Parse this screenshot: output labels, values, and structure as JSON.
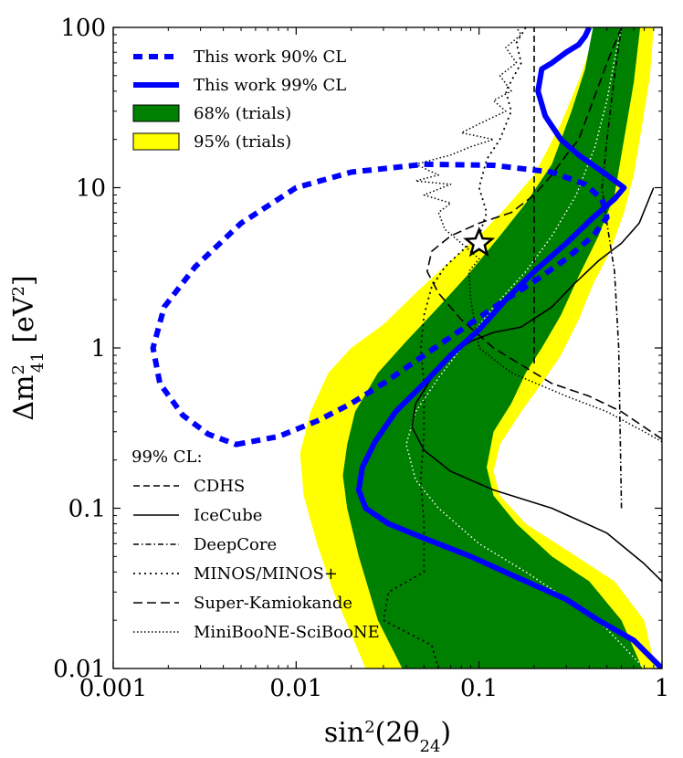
{
  "chart_data": {
    "type": "line",
    "xscale": "log",
    "yscale": "log",
    "xlim": [
      0.001,
      1
    ],
    "ylim": [
      0.01,
      100
    ],
    "xlabel": "sin²(2θ₂₄)",
    "xlabel_parts": {
      "base": "sin",
      "sup": "2",
      "mid": "(2θ",
      "sub": "24",
      "end": ")"
    },
    "ylabel": "Δm²₄₁ [eV²]",
    "ylabel_parts": {
      "base": "Δm",
      "sup": "2",
      "sub": "41",
      "mid": " [eV",
      "sup2": "2",
      "end": "]"
    },
    "xticks": [
      {
        "value": 0.001,
        "label": "0.001"
      },
      {
        "value": 0.01,
        "label": "0.01"
      },
      {
        "value": 0.1,
        "label": "0.1"
      },
      {
        "value": 1,
        "label": "1"
      }
    ],
    "yticks": [
      {
        "value": 0.01,
        "label": "0.01"
      },
      {
        "value": 0.1,
        "label": "0.1"
      },
      {
        "value": 1,
        "label": "1"
      },
      {
        "value": 10,
        "label": "10"
      },
      {
        "value": 100,
        "label": "100"
      }
    ],
    "best_fit": {
      "x": 0.1,
      "y": 4.5,
      "marker": "star"
    },
    "legend": [
      {
        "label": "This work 90% CL",
        "style": "thick-dashed",
        "color": "#0000ff"
      },
      {
        "label": "This work 99% CL",
        "style": "thick-solid",
        "color": "#0000ff"
      },
      {
        "label": "68% (trials)",
        "style": "patch",
        "color": "#008000"
      },
      {
        "label": "95% (trials)",
        "style": "patch",
        "color": "#ffff00"
      }
    ],
    "other_experiments_title": "99% CL:",
    "other_experiments": [
      {
        "label": "CDHS",
        "dash": "dashed"
      },
      {
        "label": "IceCube",
        "dash": "solid"
      },
      {
        "label": "DeepCore",
        "dash": "dashdot"
      },
      {
        "label": "MINOS/MINOS+",
        "dash": "dotted"
      },
      {
        "label": "Super-Kamiokande",
        "dash": "longdash"
      },
      {
        "label": "MiniBooNE-SciBooNE",
        "dash": "finedotted"
      }
    ],
    "series": [
      {
        "name": "95% (trials)",
        "kind": "band",
        "fill": "#ffff00",
        "left": [
          [
            0.024,
            0.01
          ],
          [
            0.016,
            0.03
          ],
          [
            0.013,
            0.06
          ],
          [
            0.011,
            0.12
          ],
          [
            0.0105,
            0.22
          ],
          [
            0.012,
            0.4
          ],
          [
            0.015,
            0.7
          ],
          [
            0.02,
            1.0
          ],
          [
            0.03,
            1.4
          ],
          [
            0.045,
            2.2
          ],
          [
            0.07,
            3.5
          ],
          [
            0.1,
            5
          ],
          [
            0.14,
            7.5
          ],
          [
            0.2,
            12
          ],
          [
            0.28,
            25
          ],
          [
            0.36,
            50
          ],
          [
            0.44,
            100
          ]
        ],
        "right": [
          [
            0.92,
            0.01
          ],
          [
            0.8,
            0.02
          ],
          [
            0.55,
            0.035
          ],
          [
            0.3,
            0.055
          ],
          [
            0.18,
            0.08
          ],
          [
            0.13,
            0.12
          ],
          [
            0.12,
            0.17
          ],
          [
            0.13,
            0.25
          ],
          [
            0.17,
            0.4
          ],
          [
            0.22,
            0.6
          ],
          [
            0.28,
            0.9
          ],
          [
            0.35,
            1.5
          ],
          [
            0.42,
            2.5
          ],
          [
            0.52,
            4
          ],
          [
            0.62,
            7
          ],
          [
            0.7,
            12
          ],
          [
            0.78,
            25
          ],
          [
            0.86,
            50
          ],
          [
            0.9,
            100
          ]
        ]
      },
      {
        "name": "68% (trials)",
        "kind": "band",
        "fill": "#008000",
        "left": [
          [
            0.038,
            0.01
          ],
          [
            0.028,
            0.02
          ],
          [
            0.022,
            0.05
          ],
          [
            0.019,
            0.1
          ],
          [
            0.018,
            0.16
          ],
          [
            0.019,
            0.25
          ],
          [
            0.021,
            0.4
          ],
          [
            0.028,
            0.7
          ],
          [
            0.04,
            1.1
          ],
          [
            0.06,
            1.8
          ],
          [
            0.09,
            3
          ],
          [
            0.13,
            5
          ],
          [
            0.18,
            8
          ],
          [
            0.25,
            14
          ],
          [
            0.32,
            30
          ],
          [
            0.38,
            55
          ],
          [
            0.42,
            100
          ]
        ],
        "right": [
          [
            0.78,
            0.01
          ],
          [
            0.6,
            0.02
          ],
          [
            0.4,
            0.035
          ],
          [
            0.25,
            0.05
          ],
          [
            0.16,
            0.08
          ],
          [
            0.12,
            0.12
          ],
          [
            0.11,
            0.18
          ],
          [
            0.12,
            0.3
          ],
          [
            0.15,
            0.45
          ],
          [
            0.18,
            0.7
          ],
          [
            0.22,
            1.0
          ],
          [
            0.28,
            1.6
          ],
          [
            0.35,
            2.8
          ],
          [
            0.45,
            5
          ],
          [
            0.55,
            9
          ],
          [
            0.62,
            20
          ],
          [
            0.7,
            45
          ],
          [
            0.76,
            100
          ]
        ]
      },
      {
        "name": "Median (trials)",
        "kind": "line",
        "stroke": "#ffffff",
        "dash": "dotted",
        "points": [
          [
            0.8,
            0.01
          ],
          [
            0.45,
            0.02
          ],
          [
            0.18,
            0.04
          ],
          [
            0.1,
            0.06
          ],
          [
            0.06,
            0.1
          ],
          [
            0.045,
            0.15
          ],
          [
            0.04,
            0.25
          ],
          [
            0.045,
            0.4
          ],
          [
            0.06,
            0.65
          ],
          [
            0.08,
            1.0
          ],
          [
            0.12,
            1.8
          ],
          [
            0.18,
            3
          ],
          [
            0.25,
            5
          ],
          [
            0.34,
            9
          ],
          [
            0.43,
            18
          ],
          [
            0.5,
            35
          ],
          [
            0.56,
            70
          ],
          [
            0.6,
            100
          ]
        ]
      },
      {
        "name": "This work 90% CL",
        "kind": "line",
        "stroke": "#0000ff",
        "dash": "thick-dashed",
        "closed": true,
        "points": [
          [
            0.0047,
            0.25
          ],
          [
            0.008,
            0.28
          ],
          [
            0.013,
            0.35
          ],
          [
            0.02,
            0.45
          ],
          [
            0.03,
            0.6
          ],
          [
            0.05,
            0.9
          ],
          [
            0.08,
            1.3
          ],
          [
            0.13,
            1.9
          ],
          [
            0.2,
            2.6
          ],
          [
            0.3,
            3.6
          ],
          [
            0.42,
            5
          ],
          [
            0.5,
            6.5
          ],
          [
            0.47,
            8.5
          ],
          [
            0.38,
            10.5
          ],
          [
            0.25,
            12.5
          ],
          [
            0.12,
            13.8
          ],
          [
            0.05,
            14
          ],
          [
            0.02,
            12.5
          ],
          [
            0.01,
            10
          ],
          [
            0.005,
            6
          ],
          [
            0.0028,
            3.2
          ],
          [
            0.0019,
            1.8
          ],
          [
            0.00165,
            1.0
          ],
          [
            0.0018,
            0.6
          ],
          [
            0.0024,
            0.38
          ],
          [
            0.0033,
            0.29
          ]
        ]
      },
      {
        "name": "This work 99% CL",
        "kind": "line",
        "stroke": "#0000ff",
        "dash": "thick-solid",
        "points": [
          [
            1,
            0.01
          ],
          [
            0.7,
            0.015
          ],
          [
            0.45,
            0.02
          ],
          [
            0.3,
            0.027
          ],
          [
            0.18,
            0.035
          ],
          [
            0.09,
            0.05
          ],
          [
            0.05,
            0.065
          ],
          [
            0.032,
            0.08
          ],
          [
            0.024,
            0.1
          ],
          [
            0.022,
            0.13
          ],
          [
            0.023,
            0.18
          ],
          [
            0.027,
            0.26
          ],
          [
            0.035,
            0.4
          ],
          [
            0.05,
            0.6
          ],
          [
            0.07,
            0.9
          ],
          [
            0.1,
            1.3
          ],
          [
            0.14,
            2
          ],
          [
            0.2,
            3
          ],
          [
            0.3,
            4.5
          ],
          [
            0.42,
            6.5
          ],
          [
            0.55,
            8.5
          ],
          [
            0.62,
            10
          ],
          [
            0.5,
            12
          ],
          [
            0.35,
            16
          ],
          [
            0.28,
            20
          ],
          [
            0.23,
            28
          ],
          [
            0.21,
            40
          ],
          [
            0.22,
            55
          ],
          [
            0.25,
            60
          ],
          [
            0.3,
            70
          ],
          [
            0.35,
            78
          ],
          [
            0.38,
            88
          ],
          [
            0.4,
            100
          ]
        ]
      },
      {
        "name": "IceCube",
        "kind": "line",
        "stroke": "#000000",
        "dash": "solid",
        "points": [
          [
            1,
            0.035
          ],
          [
            0.8,
            0.045
          ],
          [
            0.5,
            0.07
          ],
          [
            0.25,
            0.1
          ],
          [
            0.12,
            0.13
          ],
          [
            0.07,
            0.17
          ],
          [
            0.05,
            0.23
          ],
          [
            0.043,
            0.32
          ],
          [
            0.045,
            0.45
          ],
          [
            0.055,
            0.65
          ],
          [
            0.07,
            0.9
          ],
          [
            0.09,
            1.1
          ],
          [
            0.12,
            1.25
          ],
          [
            0.17,
            1.35
          ],
          [
            0.25,
            1.8
          ],
          [
            0.33,
            2.5
          ],
          [
            0.45,
            3.5
          ],
          [
            0.6,
            4.5
          ],
          [
            0.75,
            6
          ],
          [
            0.9,
            10
          ]
        ]
      },
      {
        "name": "CDHS",
        "kind": "line",
        "stroke": "#000000",
        "dash": "dashed",
        "points": [
          [
            0.2,
            0.8
          ],
          [
            0.2,
            100
          ]
        ]
      },
      {
        "name": "Super-Kamiokande",
        "kind": "line",
        "stroke": "#000000",
        "dash": "longdash",
        "points": [
          [
            1,
            0.27
          ],
          [
            0.6,
            0.4
          ],
          [
            0.4,
            0.5
          ],
          [
            0.25,
            0.6
          ],
          [
            0.12,
            1.0
          ],
          [
            0.08,
            1.5
          ],
          [
            0.06,
            2.2
          ],
          [
            0.052,
            3
          ],
          [
            0.055,
            4
          ],
          [
            0.07,
            5
          ],
          [
            0.1,
            6
          ],
          [
            0.15,
            7
          ],
          [
            0.2,
            9
          ],
          [
            0.25,
            12
          ],
          [
            0.3,
            16
          ],
          [
            0.35,
            20
          ],
          [
            0.4,
            30
          ],
          [
            0.5,
            60
          ],
          [
            0.6,
            100
          ]
        ]
      },
      {
        "name": "DeepCore",
        "kind": "line",
        "stroke": "#000000",
        "dash": "dashdot",
        "points": [
          [
            0.6,
            0.1
          ],
          [
            0.58,
            1.0
          ],
          [
            0.55,
            3
          ],
          [
            0.5,
            6
          ],
          [
            0.47,
            10
          ],
          [
            0.5,
            20
          ],
          [
            0.55,
            50
          ],
          [
            0.6,
            100
          ]
        ]
      },
      {
        "name": "MINOS/MINOS+",
        "kind": "line",
        "stroke": "#000000",
        "dash": "dotted",
        "points": [
          [
            0.06,
            0.01
          ],
          [
            0.055,
            0.014
          ],
          [
            0.03,
            0.02
          ],
          [
            0.032,
            0.03
          ],
          [
            0.05,
            0.04
          ],
          [
            0.05,
            0.08
          ],
          [
            0.048,
            0.15
          ],
          [
            0.05,
            0.3
          ],
          [
            0.05,
            0.6
          ],
          [
            0.048,
            1
          ],
          [
            0.05,
            1.6
          ],
          [
            0.055,
            2.4
          ],
          [
            0.065,
            3.2
          ],
          [
            0.08,
            4
          ],
          [
            0.1,
            5
          ],
          [
            0.11,
            7
          ],
          [
            0.1,
            10
          ],
          [
            0.11,
            15
          ],
          [
            0.13,
            20
          ],
          [
            0.15,
            30
          ],
          [
            0.14,
            40
          ],
          [
            0.17,
            60
          ],
          [
            0.16,
            80
          ],
          [
            0.18,
            100
          ]
        ]
      },
      {
        "name": "MiniBooNE-SciBooNE",
        "kind": "line",
        "stroke": "#000000",
        "dash": "finedotted",
        "points": [
          [
            1,
            0.26
          ],
          [
            0.8,
            0.3
          ],
          [
            0.5,
            0.4
          ],
          [
            0.3,
            0.5
          ],
          [
            0.15,
            0.7
          ],
          [
            0.1,
            1.0
          ],
          [
            0.09,
            2
          ],
          [
            0.088,
            3
          ],
          [
            0.1,
            3.6
          ],
          [
            0.08,
            4.5
          ],
          [
            0.065,
            5.5
          ],
          [
            0.06,
            7
          ],
          [
            0.07,
            8
          ],
          [
            0.05,
            9
          ],
          [
            0.07,
            10.5
          ],
          [
            0.045,
            11
          ],
          [
            0.06,
            12
          ],
          [
            0.045,
            14
          ],
          [
            0.07,
            16
          ],
          [
            0.09,
            18
          ],
          [
            0.12,
            20
          ],
          [
            0.08,
            22
          ],
          [
            0.1,
            25
          ],
          [
            0.14,
            30
          ],
          [
            0.12,
            35
          ],
          [
            0.15,
            40
          ],
          [
            0.13,
            50
          ],
          [
            0.16,
            60
          ],
          [
            0.14,
            75
          ],
          [
            0.17,
            90
          ],
          [
            0.16,
            100
          ]
        ]
      }
    ]
  }
}
